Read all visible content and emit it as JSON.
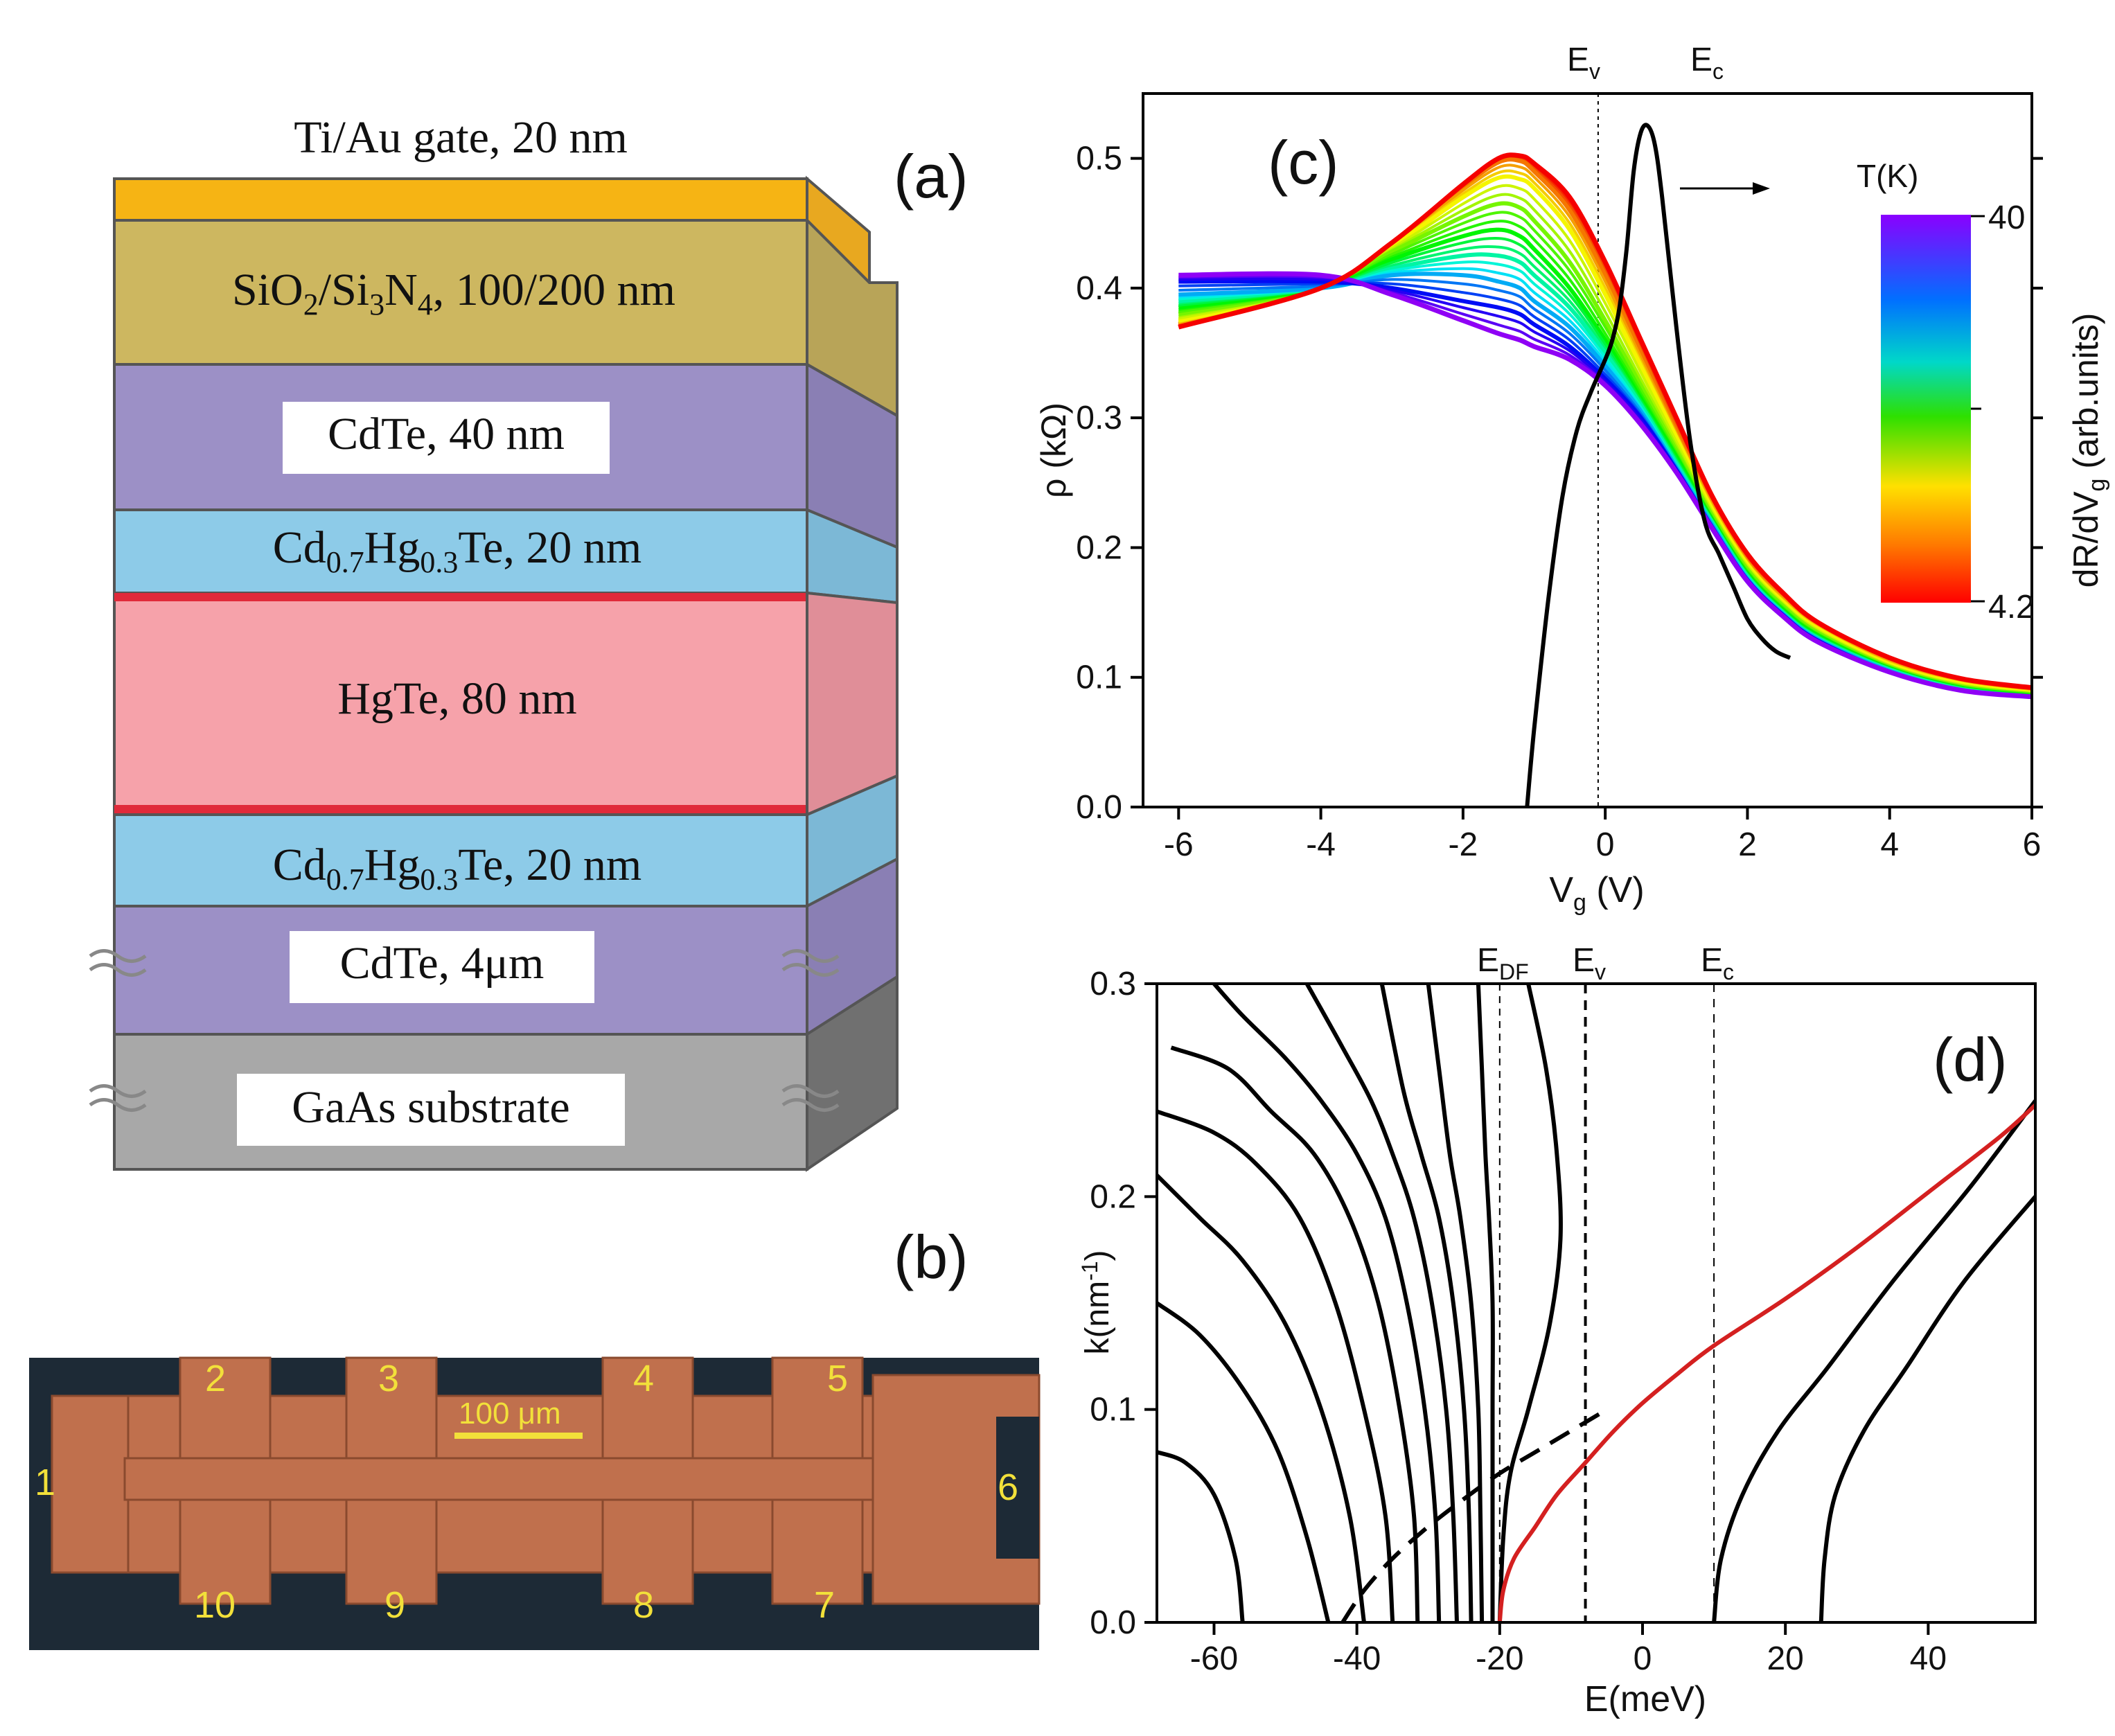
{
  "panel_labels": {
    "a": "(a)",
    "b": "(b)",
    "c": "(c)",
    "d": "(d)"
  },
  "structure": {
    "layers": [
      {
        "name": "Ti/Au gate, 20 nm",
        "color": "#f6b414"
      },
      {
        "name": "SiO2/Si3N4, 100/200 nm",
        "color": "#cdb760"
      },
      {
        "name": "CdTe, 40 nm",
        "color": "#9c90c6"
      },
      {
        "name": "Cd0.7Hg0.3Te, 20 nm",
        "color": "#8dcbe8"
      },
      {
        "name": "HgTe, 80 nm",
        "color": "#f6a2aa"
      },
      {
        "name": "Cd0.7Hg0.3Te, 20 nm",
        "color": "#8dcbe8"
      },
      {
        "name": "CdTe, 4μm",
        "color": "#9c90c6"
      },
      {
        "name": "GaAs substrate",
        "color": "#a8a8a8"
      }
    ],
    "labels": {
      "gate_label": "Ti/Au gate, 20 nm",
      "sio2": {
        "p1": "SiO",
        "s1": "2",
        "p2": "/Si",
        "s2": "3",
        "p3": "N",
        "s3": "4",
        "p4": ", 100/200 nm"
      },
      "cdte_top": "CdTe, 40 nm",
      "barrier": {
        "p1": "Cd",
        "s1": "0.7",
        "p2": "Hg",
        "s2": "0.3",
        "p3": "Te, 20 nm"
      },
      "hgte": "HgTe, 80 nm",
      "cdte_bottom": "CdTe, 4μm",
      "gaas": "GaAs substrate"
    }
  },
  "device": {
    "scale_bar": "100 μm",
    "contacts": [
      "1",
      "2",
      "3",
      "4",
      "5",
      "6",
      "7",
      "8",
      "9",
      "10"
    ],
    "colors": {
      "background": "#1d2a36",
      "metal": "#c0704d"
    }
  },
  "chart_data": [
    {
      "panel": "c",
      "type": "line",
      "xlabel": "V_g (V)",
      "ylabel_left": "ρ (kΩ)",
      "ylabel_right": "dR/dV_g (arb.units)",
      "xlim": [
        -6.5,
        6
      ],
      "ylim": [
        0,
        0.55
      ],
      "xticks": [
        -6,
        -4,
        -2,
        0,
        2,
        4,
        6
      ],
      "yticks": [
        0.0,
        0.1,
        0.2,
        0.3,
        0.4,
        0.5
      ],
      "markers": [
        {
          "label": "E_v",
          "x": -0.1
        },
        {
          "label": "E_c",
          "x": 0.6
        }
      ],
      "colorbar": {
        "title": "T(K)",
        "max_label": "40",
        "min_label": "4.2",
        "min": 4.2,
        "max": 40
      },
      "series_resistivity": [
        {
          "T": 4.2,
          "x": [
            -6,
            -4,
            -3,
            -2,
            -1.5,
            -1.2,
            -1,
            -0.5,
            0,
            0.5,
            1,
            1.5,
            2,
            2.5,
            3,
            4,
            5,
            6
          ],
          "y": [
            0.37,
            0.4,
            0.435,
            0.48,
            0.5,
            0.502,
            0.496,
            0.47,
            0.42,
            0.36,
            0.3,
            0.24,
            0.195,
            0.165,
            0.142,
            0.115,
            0.099,
            0.092
          ]
        },
        {
          "T": 8,
          "x": [
            -6,
            -4,
            -3,
            -2,
            -1.5,
            -1.2,
            -1,
            -0.5,
            0,
            0.5,
            1,
            1.5,
            2,
            2.5,
            3,
            4,
            5,
            6
          ],
          "y": [
            0.372,
            0.4,
            0.434,
            0.478,
            0.497,
            0.498,
            0.49,
            0.46,
            0.41,
            0.35,
            0.29,
            0.235,
            0.19,
            0.162,
            0.14,
            0.113,
            0.097,
            0.09
          ]
        },
        {
          "T": 12,
          "x": [
            -6,
            -4,
            -3,
            -2,
            -1.5,
            -1.2,
            -1,
            -0.5,
            0,
            0.5,
            1,
            1.5,
            2,
            2.5,
            3,
            4,
            5,
            6
          ],
          "y": [
            0.375,
            0.4,
            0.432,
            0.47,
            0.485,
            0.484,
            0.477,
            0.445,
            0.395,
            0.34,
            0.285,
            0.23,
            0.187,
            0.158,
            0.137,
            0.11,
            0.095,
            0.088
          ]
        },
        {
          "T": 16,
          "x": [
            -6,
            -4,
            -3,
            -2,
            -1.5,
            -1.2,
            -1,
            -0.5,
            0,
            0.5,
            1,
            1.5,
            2,
            2.5,
            3,
            4,
            5,
            6
          ],
          "y": [
            0.38,
            0.4,
            0.428,
            0.455,
            0.465,
            0.462,
            0.452,
            0.42,
            0.375,
            0.325,
            0.275,
            0.225,
            0.183,
            0.155,
            0.134,
            0.108,
            0.093,
            0.087
          ]
        },
        {
          "T": 20,
          "x": [
            -6,
            -4,
            -3,
            -2,
            -1.5,
            -1.2,
            -1,
            -0.5,
            0,
            0.5,
            1,
            1.5,
            2,
            2.5,
            3,
            4,
            5,
            6
          ],
          "y": [
            0.385,
            0.4,
            0.422,
            0.44,
            0.445,
            0.44,
            0.43,
            0.4,
            0.36,
            0.315,
            0.27,
            0.222,
            0.18,
            0.152,
            0.132,
            0.107,
            0.092,
            0.086
          ]
        },
        {
          "T": 25,
          "x": [
            -6,
            -4,
            -3,
            -2,
            -1.5,
            -1.2,
            -1,
            -0.5,
            0,
            0.5,
            1,
            1.5,
            2,
            2.5,
            3,
            4,
            5,
            6
          ],
          "y": [
            0.39,
            0.4,
            0.415,
            0.425,
            0.425,
            0.42,
            0.41,
            0.385,
            0.35,
            0.31,
            0.265,
            0.22,
            0.178,
            0.15,
            0.13,
            0.106,
            0.091,
            0.085
          ]
        },
        {
          "T": 30,
          "x": [
            -6,
            -4,
            -3,
            -2,
            -1.5,
            -1.2,
            -1,
            -0.5,
            0,
            0.5,
            1,
            1.5,
            2,
            2.5,
            3,
            4,
            5,
            6
          ],
          "y": [
            0.395,
            0.4,
            0.41,
            0.41,
            0.405,
            0.4,
            0.39,
            0.37,
            0.34,
            0.305,
            0.262,
            0.218,
            0.176,
            0.149,
            0.129,
            0.105,
            0.09,
            0.085
          ]
        },
        {
          "T": 35,
          "x": [
            -6,
            -4,
            -3,
            -2,
            -1.5,
            -1.2,
            -1,
            -0.5,
            0,
            0.5,
            1,
            1.5,
            2,
            2.5,
            3,
            4,
            5,
            6
          ],
          "y": [
            0.405,
            0.405,
            0.4,
            0.39,
            0.385,
            0.38,
            0.372,
            0.355,
            0.33,
            0.3,
            0.26,
            0.216,
            0.175,
            0.148,
            0.128,
            0.104,
            0.09,
            0.085
          ]
        },
        {
          "T": 40,
          "x": [
            -6,
            -4,
            -3,
            -2,
            -1.5,
            -1.2,
            -1,
            -0.5,
            0,
            0.5,
            1,
            1.5,
            2,
            2.5,
            3,
            4,
            5,
            6
          ],
          "y": [
            0.41,
            0.41,
            0.395,
            0.375,
            0.365,
            0.36,
            0.355,
            0.345,
            0.325,
            0.295,
            0.258,
            0.215,
            0.174,
            0.147,
            0.127,
            0.104,
            0.09,
            0.085
          ]
        }
      ],
      "series_derivative": {
        "name": "dR/dV_g",
        "color": "#000000",
        "x": [
          -1.1,
          -1.0,
          -0.8,
          -0.6,
          -0.4,
          -0.2,
          0,
          0.1,
          0.2,
          0.3,
          0.4,
          0.5,
          0.6,
          0.7,
          0.8,
          1.0,
          1.2,
          1.4,
          1.6,
          1.8,
          2.0,
          2.2,
          2.4,
          2.6
        ],
        "y": [
          0.0,
          0.06,
          0.16,
          0.24,
          0.29,
          0.32,
          0.345,
          0.36,
          0.385,
          0.43,
          0.49,
          0.52,
          0.525,
          0.51,
          0.47,
          0.37,
          0.28,
          0.22,
          0.195,
          0.17,
          0.145,
          0.13,
          0.12,
          0.115
        ]
      }
    },
    {
      "panel": "d",
      "type": "line",
      "xlabel": "E(meV)",
      "ylabel": "k(nm⁻¹)",
      "xlim": [
        -68,
        55
      ],
      "ylim": [
        0,
        0.3
      ],
      "xticks": [
        -60,
        -40,
        -20,
        0,
        20,
        40
      ],
      "yticks": [
        0.0,
        0.1,
        0.2,
        0.3
      ],
      "markers": [
        {
          "label": "E_DF",
          "x": -20
        },
        {
          "label": "E_v",
          "x": -8
        },
        {
          "label": "E_c",
          "x": 10
        }
      ],
      "valence_subbands": [
        {
          "x": [
            -56,
            -57,
            -60,
            -64,
            -68
          ],
          "y": [
            0.0,
            0.03,
            0.06,
            0.075,
            0.08
          ]
        },
        {
          "x": [
            -44,
            -47,
            -51,
            -56,
            -62,
            -68
          ],
          "y": [
            0.0,
            0.04,
            0.08,
            0.11,
            0.135,
            0.15
          ]
        },
        {
          "x": [
            -39,
            -41,
            -45,
            -50,
            -56,
            -62,
            -68
          ],
          "y": [
            0.0,
            0.05,
            0.1,
            0.14,
            0.17,
            0.19,
            0.21
          ]
        },
        {
          "x": [
            -35,
            -36,
            -39,
            -43,
            -48,
            -54,
            -60,
            -68
          ],
          "y": [
            0.0,
            0.05,
            0.1,
            0.15,
            0.19,
            0.215,
            0.23,
            0.24
          ]
        },
        {
          "x": [
            -31.5,
            -32,
            -34,
            -37,
            -41,
            -46,
            -52,
            -58,
            -66
          ],
          "y": [
            0.0,
            0.05,
            0.1,
            0.15,
            0.19,
            0.22,
            0.24,
            0.26,
            0.27
          ]
        },
        {
          "x": [
            -28.5,
            -29,
            -30.5,
            -33,
            -36,
            -40,
            -45,
            -50,
            -56,
            -60
          ],
          "y": [
            0.0,
            0.05,
            0.1,
            0.15,
            0.19,
            0.22,
            0.245,
            0.265,
            0.285,
            0.3
          ]
        },
        {
          "x": [
            -26,
            -26.5,
            -27.5,
            -29.5,
            -32,
            -35,
            -38,
            -42,
            -47
          ],
          "y": [
            0.0,
            0.05,
            0.1,
            0.15,
            0.19,
            0.22,
            0.245,
            0.27,
            0.3
          ]
        },
        {
          "x": [
            -24,
            -24.3,
            -25,
            -26.5,
            -28.5,
            -31,
            -33.5,
            -36.5
          ],
          "y": [
            0.0,
            0.05,
            0.1,
            0.15,
            0.19,
            0.22,
            0.25,
            0.3
          ]
        },
        {
          "x": [
            -22.5,
            -22.7,
            -23,
            -24,
            -25.5,
            -27,
            -28.5,
            -30
          ],
          "y": [
            0.0,
            0.05,
            0.1,
            0.15,
            0.19,
            0.22,
            0.26,
            0.3
          ]
        },
        {
          "x": [
            -21,
            -21,
            -21,
            -21,
            -21.5,
            -22,
            -22.5,
            -23
          ],
          "y": [
            0.0,
            0.05,
            0.1,
            0.15,
            0.19,
            0.22,
            0.26,
            0.3
          ]
        },
        {
          "x": [
            -20,
            -19.5,
            -18.5,
            -16,
            -13,
            -11.5,
            -12,
            -13.5,
            -16
          ],
          "y": [
            0.0,
            0.04,
            0.07,
            0.1,
            0.14,
            0.18,
            0.22,
            0.26,
            0.3
          ]
        }
      ],
      "dashed_band": {
        "x": [
          -42,
          -39,
          -35,
          -30,
          -25,
          -20,
          -15,
          -10,
          -5
        ],
        "y": [
          0.0,
          0.015,
          0.03,
          0.045,
          0.058,
          0.07,
          0.08,
          0.09,
          0.1
        ]
      },
      "surface_state": {
        "color": "#d42020",
        "x": [
          -20,
          -19.5,
          -18,
          -15,
          -12,
          -8,
          -4,
          0,
          5,
          10,
          20,
          30,
          40,
          50,
          55
        ],
        "y": [
          0.0,
          0.015,
          0.03,
          0.045,
          0.06,
          0.075,
          0.09,
          0.103,
          0.117,
          0.13,
          0.152,
          0.176,
          0.202,
          0.228,
          0.243
        ]
      },
      "conduction_subbands": [
        {
          "x": [
            10,
            11,
            14,
            19,
            26,
            35,
            46,
            55
          ],
          "y": [
            0.0,
            0.03,
            0.06,
            0.09,
            0.12,
            0.16,
            0.205,
            0.245
          ]
        },
        {
          "x": [
            25,
            25.5,
            27,
            31,
            37,
            45,
            55
          ],
          "y": [
            0.0,
            0.03,
            0.06,
            0.09,
            0.12,
            0.16,
            0.2
          ]
        }
      ]
    }
  ]
}
